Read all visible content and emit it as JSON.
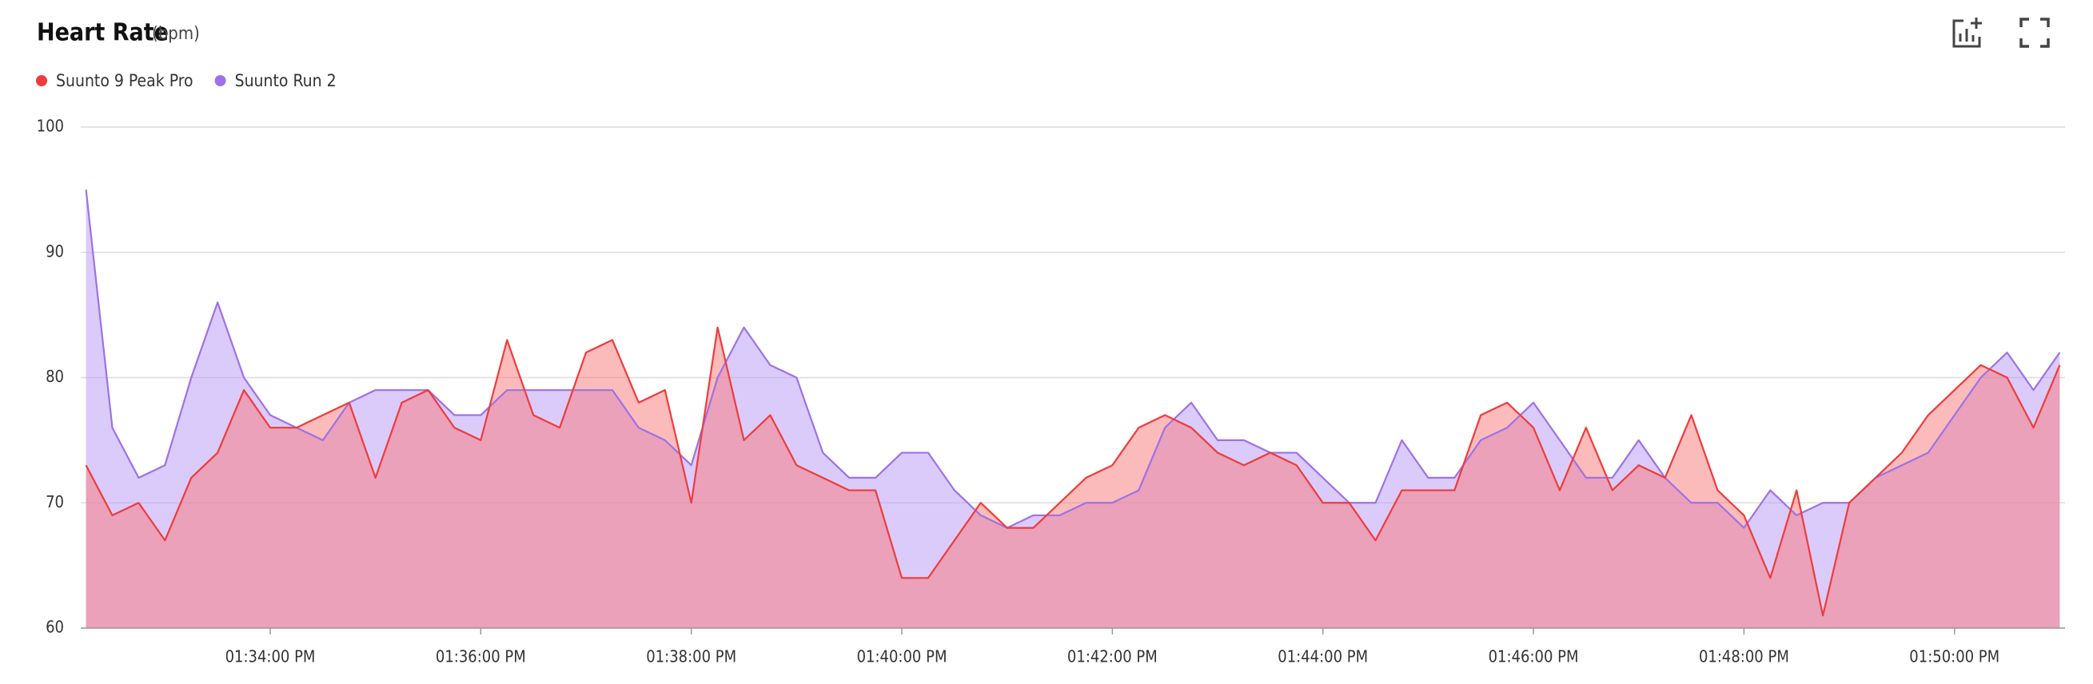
{
  "chart_data": {
    "type": "area",
    "title": "Heart Rate",
    "subtitle": "(bpm)",
    "x": [
      "01:32:15 PM",
      "01:32:30 PM",
      "01:32:45 PM",
      "01:33:00 PM",
      "01:33:15 PM",
      "01:33:30 PM",
      "01:33:45 PM",
      "01:34:00 PM",
      "01:34:15 PM",
      "01:34:30 PM",
      "01:34:45 PM",
      "01:35:00 PM",
      "01:35:15 PM",
      "01:35:30 PM",
      "01:35:45 PM",
      "01:36:00 PM",
      "01:36:15 PM",
      "01:36:30 PM",
      "01:36:45 PM",
      "01:37:00 PM",
      "01:37:15 PM",
      "01:37:30 PM",
      "01:37:45 PM",
      "01:38:00 PM",
      "01:38:15 PM",
      "01:38:30 PM",
      "01:38:45 PM",
      "01:39:00 PM",
      "01:39:15 PM",
      "01:39:30 PM",
      "01:39:45 PM",
      "01:40:00 PM",
      "01:40:15 PM",
      "01:40:30 PM",
      "01:40:45 PM",
      "01:41:00 PM",
      "01:41:15 PM",
      "01:41:30 PM",
      "01:41:45 PM",
      "01:42:00 PM",
      "01:42:15 PM",
      "01:42:30 PM",
      "01:42:45 PM",
      "01:43:00 PM",
      "01:43:15 PM",
      "01:43:30 PM",
      "01:43:45 PM",
      "01:44:00 PM",
      "01:44:15 PM",
      "01:44:30 PM",
      "01:44:45 PM",
      "01:45:00 PM",
      "01:45:15 PM",
      "01:45:30 PM",
      "01:45:45 PM",
      "01:46:00 PM",
      "01:46:15 PM",
      "01:46:30 PM",
      "01:46:45 PM",
      "01:47:00 PM",
      "01:47:15 PM",
      "01:47:30 PM",
      "01:47:45 PM",
      "01:48:00 PM",
      "01:48:15 PM",
      "01:48:30 PM",
      "01:48:45 PM",
      "01:49:00 PM",
      "01:49:15 PM",
      "01:49:30 PM",
      "01:49:45 PM",
      "01:50:00 PM",
      "01:50:15 PM",
      "01:50:30 PM",
      "01:50:45 PM",
      "01:51:00 PM"
    ],
    "series": [
      {
        "name": "Suunto 9 Peak Pro",
        "color": "#ef3b3b",
        "values": [
          73,
          69,
          70,
          67,
          72,
          74,
          79,
          76,
          76,
          77,
          78,
          72,
          78,
          79,
          76,
          75,
          83,
          77,
          76,
          82,
          83,
          78,
          79,
          70,
          84,
          75,
          77,
          73,
          72,
          71,
          71,
          64,
          64,
          67,
          70,
          68,
          68,
          70,
          72,
          73,
          76,
          77,
          76,
          74,
          73,
          74,
          73,
          70,
          70,
          67,
          71,
          71,
          71,
          77,
          78,
          76,
          71,
          76,
          71,
          73,
          72,
          77,
          71,
          69,
          64,
          71,
          61,
          70,
          72,
          74,
          77,
          79,
          81,
          80,
          76,
          81
        ]
      },
      {
        "name": "Suunto Run 2",
        "color": "#9d72e6",
        "values": [
          95,
          76,
          72,
          73,
          80,
          86,
          80,
          77,
          76,
          75,
          78,
          79,
          79,
          79,
          77,
          77,
          79,
          79,
          79,
          79,
          79,
          76,
          75,
          73,
          80,
          84,
          81,
          80,
          74,
          72,
          72,
          74,
          74,
          71,
          69,
          68,
          69,
          69,
          70,
          70,
          71,
          76,
          78,
          75,
          75,
          74,
          74,
          72,
          70,
          70,
          75,
          72,
          72,
          75,
          76,
          78,
          75,
          72,
          72,
          75,
          72,
          70,
          70,
          68,
          71,
          69,
          70,
          70,
          72,
          73,
          74,
          77,
          80,
          82,
          79,
          82
        ]
      }
    ],
    "xlim": [
      "01:32:12 PM",
      "01:51:03 PM"
    ],
    "xticks": [
      "01:34:00 PM",
      "01:36:00 PM",
      "01:38:00 PM",
      "01:40:00 PM",
      "01:42:00 PM",
      "01:44:00 PM",
      "01:46:00 PM",
      "01:48:00 PM",
      "01:50:00 PM"
    ],
    "ylim": [
      60,
      100
    ],
    "yticks": [
      60,
      70,
      80,
      90,
      100
    ],
    "grid": true
  }
}
